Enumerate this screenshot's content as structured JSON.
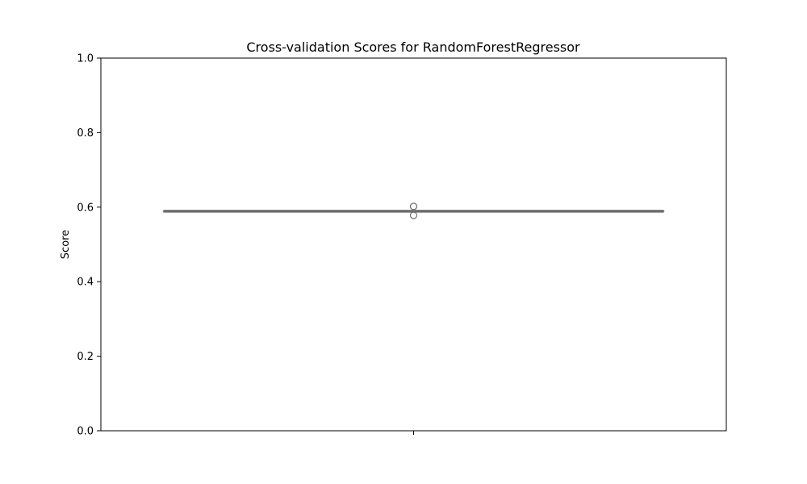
{
  "chart_data": {
    "type": "box",
    "title": "Cross-validation Scores for RandomForestRegressor",
    "xlabel": "",
    "ylabel": "Score",
    "ylim": [
      0,
      1
    ],
    "yticks": [
      "0.0",
      "0.2",
      "0.4",
      "0.6",
      "0.8",
      "1.0"
    ],
    "grid": false,
    "legend": "none",
    "series": [
      {
        "whisker_low": 0.589,
        "q1": 0.589,
        "median": 0.589,
        "q3": 0.589,
        "whisker_high": 0.589,
        "outliers": [
          0.602,
          0.578
        ]
      }
    ],
    "colors": {
      "box_line": "#6e6e6e",
      "axis": "#000000"
    }
  }
}
